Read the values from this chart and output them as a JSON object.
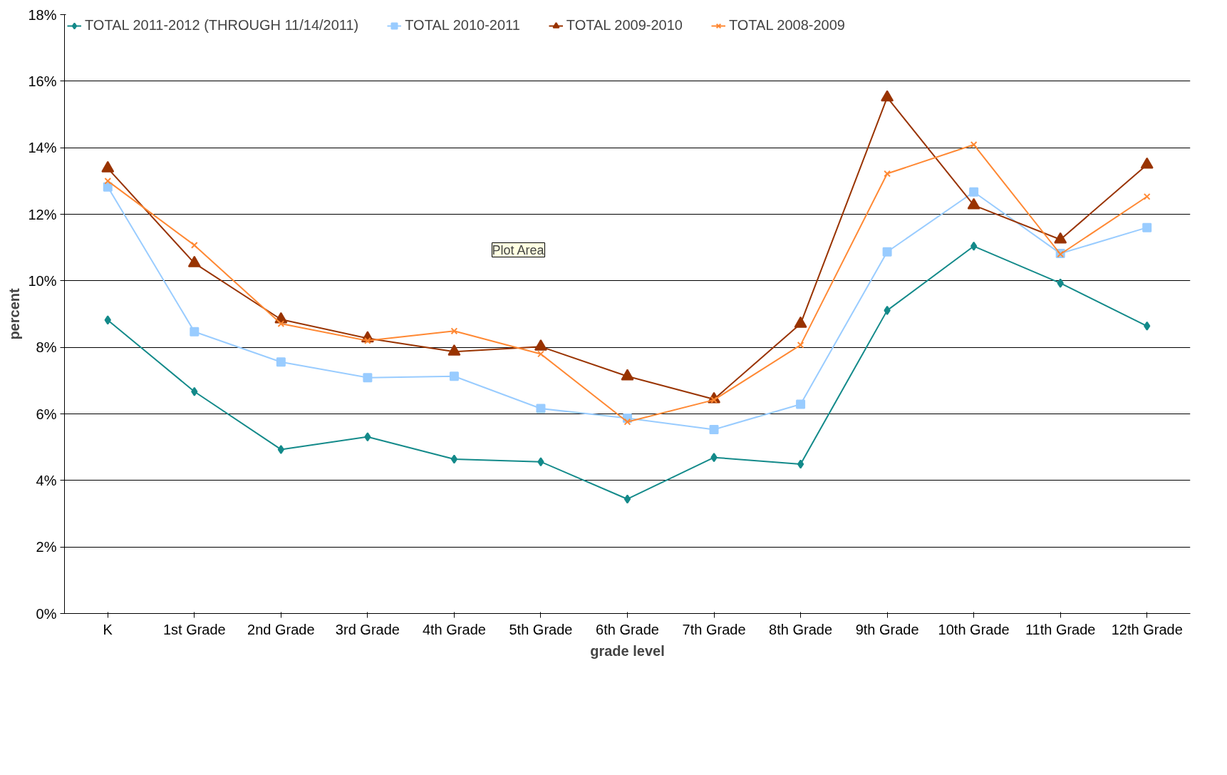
{
  "chart_data": {
    "type": "line",
    "xlabel": "grade level",
    "ylabel": "percent",
    "categories": [
      "K",
      "1st Grade",
      "2nd Grade",
      "3rd Grade",
      "4th Grade",
      "5th Grade",
      "6th Grade",
      "7th Grade",
      "8th Grade",
      "9th Grade",
      "10th Grade",
      "11th Grade",
      "12th Grade"
    ],
    "series": [
      {
        "name": "TOTAL 2011-2012 (THROUGH 11/14/2011)",
        "color": "#138a8a",
        "marker": "diamond",
        "values": [
          8.82,
          6.67,
          4.93,
          5.31,
          4.64,
          4.56,
          3.44,
          4.69,
          4.49,
          9.11,
          11.04,
          9.93,
          8.64
        ]
      },
      {
        "name": "TOTAL 2010-2011",
        "color": "#99ccff",
        "marker": "square",
        "values": [
          12.82,
          8.47,
          7.56,
          7.09,
          7.13,
          6.16,
          5.87,
          5.53,
          6.29,
          10.87,
          12.67,
          10.82,
          11.6
        ]
      },
      {
        "name": "TOTAL 2009-2010",
        "color": "#993300",
        "marker": "triangle",
        "values": [
          13.38,
          10.53,
          8.84,
          8.27,
          7.87,
          8.02,
          7.13,
          6.44,
          8.71,
          15.51,
          12.27,
          11.24,
          13.49
        ]
      },
      {
        "name": "TOTAL 2008-2009",
        "color": "#ff8833",
        "marker": "cross",
        "values": [
          13.0,
          11.07,
          8.71,
          8.2,
          8.49,
          7.8,
          5.76,
          6.42,
          8.07,
          13.22,
          14.09,
          10.8,
          12.53
        ]
      }
    ],
    "ylim": [
      0,
      18
    ],
    "yticks": [
      {
        "value": 0,
        "label": "0%"
      },
      {
        "value": 2,
        "label": "2%"
      },
      {
        "value": 4,
        "label": "4%"
      },
      {
        "value": 6,
        "label": "6%"
      },
      {
        "value": 8,
        "label": "8%"
      },
      {
        "value": 10,
        "label": "10%"
      },
      {
        "value": 12,
        "label": "12%"
      },
      {
        "value": 14,
        "label": "14%"
      },
      {
        "value": 16,
        "label": "16%"
      },
      {
        "value": 18,
        "label": "18%"
      }
    ],
    "grid": "y",
    "legend": "top",
    "line_style": "solid",
    "annotations": [
      "Plot Area"
    ]
  }
}
